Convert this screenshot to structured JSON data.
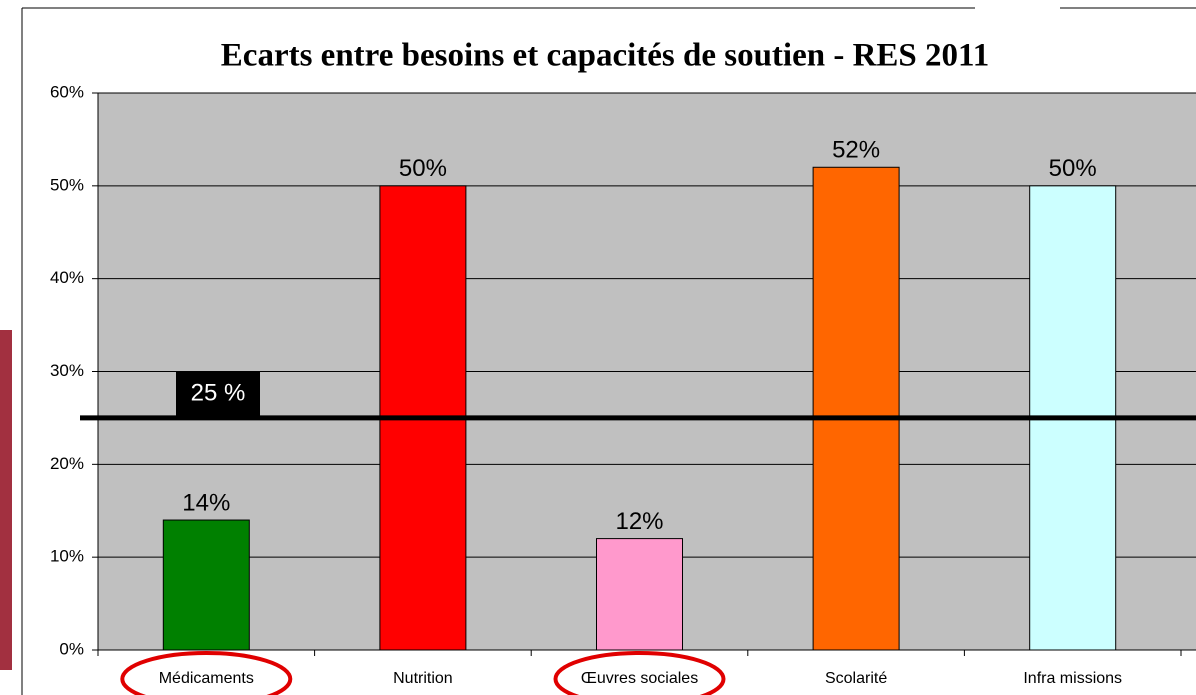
{
  "chart_data": {
    "type": "bar",
    "title": "Ecarts entre besoins et capacités de soutien - RES 2011",
    "categories": [
      "Médicaments",
      "Nutrition",
      "Œuvres sociales",
      "Scolarité",
      "Infra missions"
    ],
    "values": [
      14,
      50,
      12,
      52,
      50
    ],
    "value_labels": [
      "14%",
      "50%",
      "12%",
      "52%",
      "50%"
    ],
    "colors": [
      "#008000",
      "#ff0000",
      "#ff99cc",
      "#ff6600",
      "#ccffff"
    ],
    "ylim": [
      0,
      60
    ],
    "yticks": [
      {
        "value": 0,
        "label": "0%"
      },
      {
        "value": 10,
        "label": "10%"
      },
      {
        "value": 20,
        "label": "20%"
      },
      {
        "value": 30,
        "label": "30%"
      },
      {
        "value": 40,
        "label": "40%"
      },
      {
        "value": 50,
        "label": "50%"
      },
      {
        "value": 60,
        "label": "60%"
      }
    ],
    "grid": true,
    "reference_line": {
      "value": 25,
      "label": "25 %"
    }
  }
}
